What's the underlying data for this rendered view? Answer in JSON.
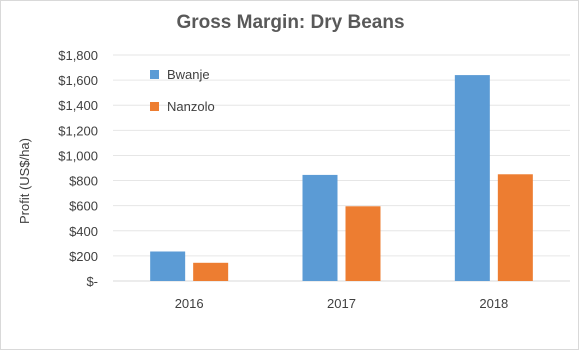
{
  "chart_data": {
    "type": "bar",
    "title": "Gross Margin: Dry Beans",
    "xlabel": "",
    "ylabel": "Profit (US$/ha)",
    "categories": [
      "2016",
      "2017",
      "2018"
    ],
    "series": [
      {
        "name": "Bwanje",
        "color": "#5b9bd5",
        "values": [
          235,
          845,
          1640
        ]
      },
      {
        "name": "Nanzolo",
        "color": "#ed7d31",
        "values": [
          145,
          595,
          850
        ]
      }
    ],
    "ylim": [
      0,
      1800
    ],
    "yticks": [
      0,
      200,
      400,
      600,
      800,
      1000,
      1200,
      1400,
      1600,
      1800
    ],
    "ytick_labels": [
      "$-",
      "$200",
      "$400",
      "$600",
      "$800",
      "$1,000",
      "$1,200",
      "$1,400",
      "$1,600",
      "$1,800"
    ],
    "grid": true,
    "legend_position": "top-left"
  }
}
